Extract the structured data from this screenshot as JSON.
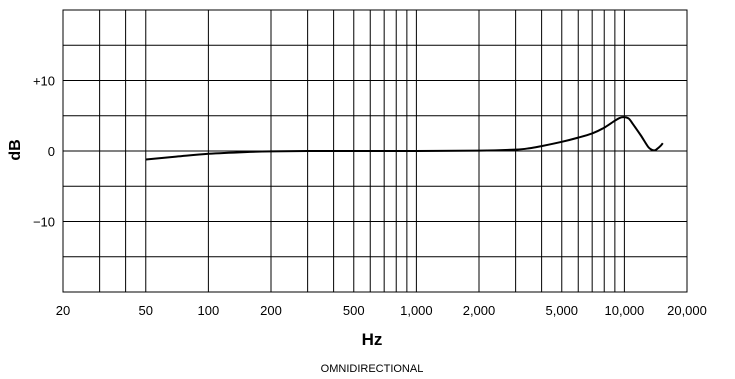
{
  "chart_data": {
    "type": "line",
    "title": "",
    "xlabel": "Hz",
    "ylabel": "dB",
    "caption": "OMNIDIRECTIONAL",
    "x_scale": "log",
    "xlim": [
      20,
      20000
    ],
    "ylim": [
      -20,
      20
    ],
    "grid": true,
    "legend": "none",
    "x_major_ticks": [
      {
        "value": 20,
        "label": "20"
      },
      {
        "value": 50,
        "label": "50"
      },
      {
        "value": 100,
        "label": "100"
      },
      {
        "value": 200,
        "label": "200"
      },
      {
        "value": 500,
        "label": "500"
      },
      {
        "value": 1000,
        "label": "1,000"
      },
      {
        "value": 2000,
        "label": "2,000"
      },
      {
        "value": 5000,
        "label": "5,000"
      },
      {
        "value": 10000,
        "label": "10,000"
      },
      {
        "value": 20000,
        "label": "20,000"
      }
    ],
    "x_minor_ticks": [
      30,
      40,
      300,
      400,
      600,
      700,
      800,
      900,
      3000,
      4000,
      6000,
      7000,
      8000,
      9000
    ],
    "y_ticks": [
      {
        "value": 10,
        "label": "+10"
      },
      {
        "value": 0,
        "label": "0"
      },
      {
        "value": -10,
        "label": "−10"
      }
    ],
    "y_grid": [
      15,
      10,
      5,
      0,
      -5,
      -10,
      -15
    ],
    "series": [
      {
        "color": "#000000",
        "points": [
          [
            50,
            -1.2
          ],
          [
            70,
            -0.8
          ],
          [
            100,
            -0.4
          ],
          [
            150,
            -0.15
          ],
          [
            200,
            -0.05
          ],
          [
            300,
            0.0
          ],
          [
            500,
            0.0
          ],
          [
            1000,
            0.0
          ],
          [
            2000,
            0.05
          ],
          [
            3000,
            0.2
          ],
          [
            3500,
            0.4
          ],
          [
            4000,
            0.7
          ],
          [
            5000,
            1.3
          ],
          [
            6000,
            1.9
          ],
          [
            7000,
            2.5
          ],
          [
            8000,
            3.3
          ],
          [
            9000,
            4.3
          ],
          [
            9500,
            4.7
          ],
          [
            10000,
            4.8
          ],
          [
            10500,
            4.6
          ],
          [
            11000,
            3.8
          ],
          [
            12000,
            2.2
          ],
          [
            13000,
            0.6
          ],
          [
            13500,
            0.2
          ],
          [
            14000,
            0.1
          ],
          [
            14500,
            0.4
          ],
          [
            15000,
            0.8
          ],
          [
            15300,
            1.1
          ]
        ]
      }
    ]
  }
}
